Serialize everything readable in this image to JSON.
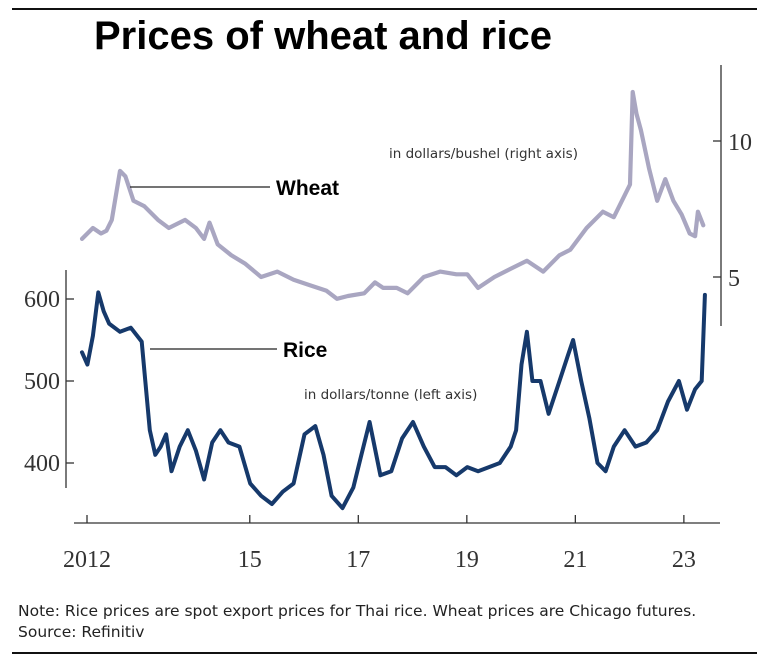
{
  "title": "Prices of wheat and rice",
  "note": "Note: Rice prices are spot export prices for Thai rice. Wheat prices are Chicago futures.",
  "source": "Source: Refinitiv",
  "colors": {
    "wheat": "#a9a6c1",
    "rice": "#16396b",
    "axis": "#333333"
  },
  "chart_data": {
    "type": "line",
    "title": "Prices of wheat and rice",
    "x_ticks": [
      "2012",
      "15",
      "17",
      "19",
      "21",
      "23"
    ],
    "x_tick_values": [
      2012,
      2015,
      2017,
      2019,
      2021,
      2023
    ],
    "xlim": [
      2012,
      2023.5
    ],
    "left_axis": {
      "ticks": [
        "400",
        "500",
        "600"
      ],
      "tick_values": [
        400,
        500,
        600
      ],
      "ylim": [
        330,
        640
      ],
      "label": "in dollars/tonne (left axis)"
    },
    "right_axis": {
      "ticks": [
        "5",
        "10"
      ],
      "tick_values": [
        5,
        10
      ],
      "ylim": [
        3,
        12.5
      ],
      "label": "in dollars/bushel (right axis)"
    },
    "series": [
      {
        "name": "Wheat",
        "axis": "right",
        "x": [
          2012.0,
          2012.2,
          2012.35,
          2012.45,
          2012.55,
          2012.7,
          2012.8,
          2012.95,
          2013.15,
          2013.4,
          2013.6,
          2013.9,
          2014.1,
          2014.25,
          2014.35,
          2014.5,
          2014.75,
          2015.0,
          2015.3,
          2015.6,
          2015.9,
          2016.2,
          2016.5,
          2016.7,
          2016.9,
          2017.2,
          2017.4,
          2017.55,
          2017.8,
          2018.0,
          2018.3,
          2018.6,
          2018.9,
          2019.1,
          2019.3,
          2019.6,
          2019.9,
          2020.2,
          2020.5,
          2020.8,
          2021.0,
          2021.3,
          2021.6,
          2021.8,
          2022.0,
          2022.1,
          2022.15,
          2022.22,
          2022.3,
          2022.45,
          2022.6,
          2022.75,
          2022.9,
          2023.05,
          2023.2,
          2023.3,
          2023.35,
          2023.45
        ],
        "values": [
          6.4,
          6.8,
          6.6,
          6.7,
          7.1,
          8.9,
          8.7,
          7.8,
          7.6,
          7.1,
          6.8,
          7.1,
          6.8,
          6.4,
          7.0,
          6.2,
          5.8,
          5.5,
          5.0,
          5.2,
          4.9,
          4.7,
          4.5,
          4.2,
          4.3,
          4.4,
          4.8,
          4.6,
          4.6,
          4.4,
          5.0,
          5.2,
          5.1,
          5.1,
          4.6,
          5.0,
          5.3,
          5.6,
          5.2,
          5.8,
          6.0,
          6.8,
          7.4,
          7.2,
          8.0,
          8.4,
          11.8,
          11.0,
          10.4,
          9.0,
          7.8,
          8.6,
          7.8,
          7.3,
          6.6,
          6.5,
          7.4,
          6.9
        ]
      },
      {
        "name": "Rice",
        "axis": "left",
        "x": [
          2012.0,
          2012.1,
          2012.2,
          2012.3,
          2012.4,
          2012.5,
          2012.7,
          2012.9,
          2013.1,
          2013.25,
          2013.35,
          2013.45,
          2013.55,
          2013.65,
          2013.8,
          2013.95,
          2014.1,
          2014.25,
          2014.4,
          2014.55,
          2014.7,
          2014.9,
          2015.1,
          2015.3,
          2015.5,
          2015.7,
          2015.9,
          2016.1,
          2016.3,
          2016.45,
          2016.6,
          2016.8,
          2017.0,
          2017.15,
          2017.3,
          2017.5,
          2017.7,
          2017.9,
          2018.1,
          2018.3,
          2018.5,
          2018.7,
          2018.9,
          2019.1,
          2019.3,
          2019.5,
          2019.7,
          2019.9,
          2020.0,
          2020.1,
          2020.2,
          2020.3,
          2020.45,
          2020.6,
          2020.8,
          2020.95,
          2021.05,
          2021.2,
          2021.35,
          2021.5,
          2021.65,
          2021.8,
          2022.0,
          2022.2,
          2022.4,
          2022.6,
          2022.8,
          2023.0,
          2023.15,
          2023.3,
          2023.42,
          2023.48
        ],
        "values": [
          535,
          520,
          555,
          608,
          585,
          570,
          560,
          565,
          548,
          440,
          410,
          420,
          435,
          390,
          420,
          440,
          415,
          380,
          425,
          440,
          425,
          420,
          375,
          360,
          350,
          365,
          375,
          435,
          445,
          410,
          360,
          345,
          370,
          410,
          450,
          385,
          390,
          430,
          450,
          420,
          395,
          395,
          385,
          395,
          390,
          395,
          400,
          420,
          440,
          520,
          560,
          500,
          500,
          460,
          500,
          530,
          550,
          500,
          455,
          400,
          390,
          420,
          440,
          420,
          425,
          440,
          475,
          500,
          465,
          490,
          500,
          605
        ]
      }
    ],
    "annotations": [
      "Wheat",
      "Rice"
    ]
  }
}
